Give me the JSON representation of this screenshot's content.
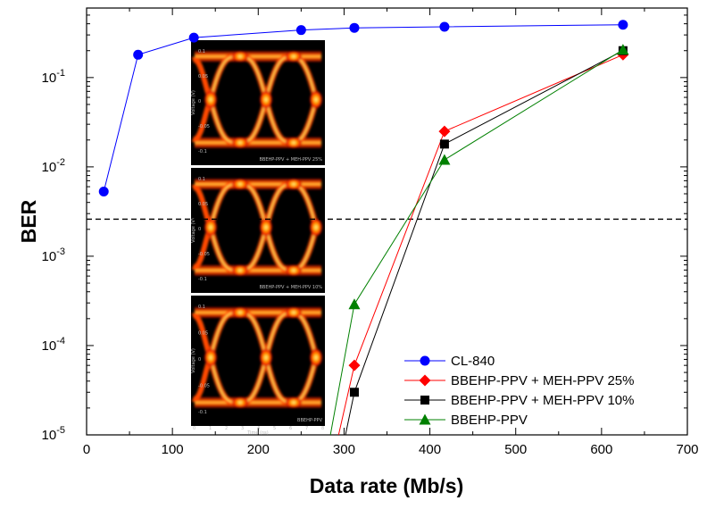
{
  "chart_data": {
    "type": "line",
    "xlabel": "Data rate (Mb/s)",
    "ylabel": "BER",
    "xlim": [
      0,
      700
    ],
    "ylim": [
      1e-05,
      0.6
    ],
    "yscale": "log",
    "xticks": [
      0,
      100,
      200,
      300,
      400,
      500,
      600,
      700
    ],
    "xtick_labels": [
      "0",
      "100",
      "200",
      "300",
      "400",
      "500",
      "600",
      "700"
    ],
    "yticks": [
      1e-05,
      0.0001,
      0.001,
      0.01,
      0.1
    ],
    "ytick_labels": [
      {
        "base": "10",
        "exp": "-5"
      },
      {
        "base": "10",
        "exp": "-4"
      },
      {
        "base": "10",
        "exp": "-3"
      },
      {
        "base": "10",
        "exp": "-2"
      },
      {
        "base": "10",
        "exp": "-1"
      }
    ],
    "threshold": 0.0026,
    "legend_position": "bottom-right",
    "grid": false,
    "series": [
      {
        "name": "CL-840",
        "color": "#0000ff",
        "marker": "circle",
        "x": [
          20,
          60,
          125,
          250,
          312,
          417,
          625
        ],
        "y": [
          0.0053,
          0.18,
          0.28,
          0.34,
          0.36,
          0.37,
          0.39
        ]
      },
      {
        "name": "BBEHP-PPV + MEH-PPV 25%",
        "color": "#ff0000",
        "marker": "diamond",
        "x": [
          270,
          312,
          417,
          625
        ],
        "y": [
          1e-06,
          6e-05,
          0.025,
          0.18
        ]
      },
      {
        "name": "BBEHP-PPV + MEH-PPV 10%",
        "color": "#000000",
        "marker": "square",
        "x": [
          280,
          312,
          417,
          625
        ],
        "y": [
          1e-06,
          3e-05,
          0.018,
          0.2
        ]
      },
      {
        "name": "BBEHP-PPV",
        "color": "#008000",
        "marker": "triangle",
        "x": [
          265,
          312,
          417,
          625
        ],
        "y": [
          1e-06,
          0.00029,
          0.012,
          0.205
        ]
      }
    ]
  },
  "inset": {
    "panels": [
      {
        "caption": "BBEHP-PPV + MEH-PPV 25%"
      },
      {
        "caption": "BBEHP-PPV + MEH-PPV 10%"
      },
      {
        "caption": "BBEHP-PPV"
      }
    ],
    "ylabel": "Voltage (V)",
    "xlabel": "Time (ns)",
    "yticks": [
      "0.1",
      "0.05",
      "0",
      "-0.05",
      "-0.1"
    ],
    "xticks": [
      "0",
      "1",
      "2",
      "3",
      "4",
      "5",
      "6",
      "7",
      "8"
    ]
  }
}
